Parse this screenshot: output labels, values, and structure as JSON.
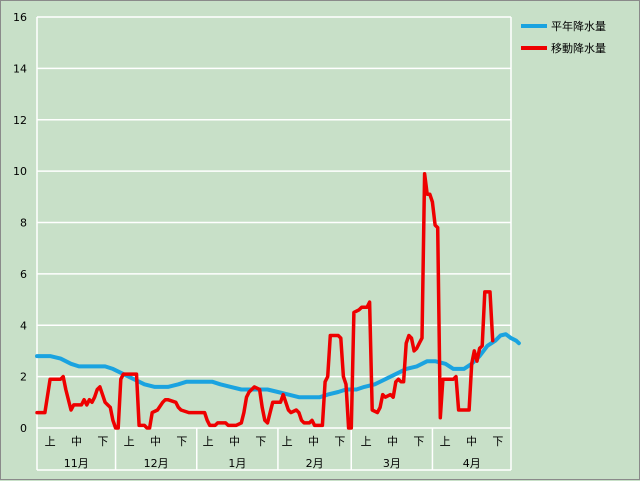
{
  "chart_data": {
    "type": "line",
    "ylim": [
      0,
      16
    ],
    "yticks": [
      0,
      2,
      4,
      6,
      8,
      10,
      12,
      14,
      16
    ],
    "grid": true,
    "legend_position": "top-right",
    "x_sublabels": [
      "上",
      "中",
      "下",
      "上",
      "中",
      "下",
      "上",
      "中",
      "下",
      "上",
      "中",
      "下",
      "上",
      "中",
      "下",
      "上",
      "中",
      "下"
    ],
    "x_months": [
      "11月",
      "12月",
      "1月",
      "2月",
      "3月",
      "4月"
    ],
    "month_days": [
      30,
      31,
      31,
      28,
      31,
      30
    ],
    "x_domain": [
      0,
      181
    ],
    "series": [
      {
        "name": "平年降水量",
        "color": "#1aa3e0",
        "points": [
          [
            0,
            2.8
          ],
          [
            5,
            2.8
          ],
          [
            9,
            2.7
          ],
          [
            13,
            2.5
          ],
          [
            16,
            2.4
          ],
          [
            20,
            2.4
          ],
          [
            26,
            2.4
          ],
          [
            29,
            2.3
          ],
          [
            33,
            2.1
          ],
          [
            37,
            1.9
          ],
          [
            41,
            1.7
          ],
          [
            45,
            1.6
          ],
          [
            50,
            1.6
          ],
          [
            54,
            1.7
          ],
          [
            57,
            1.8
          ],
          [
            61,
            1.8
          ],
          [
            67,
            1.8
          ],
          [
            70,
            1.7
          ],
          [
            74,
            1.6
          ],
          [
            78,
            1.5
          ],
          [
            83,
            1.5
          ],
          [
            88,
            1.5
          ],
          [
            92,
            1.4
          ],
          [
            96,
            1.3
          ],
          [
            100,
            1.2
          ],
          [
            104,
            1.2
          ],
          [
            108,
            1.2
          ],
          [
            111,
            1.3
          ],
          [
            115,
            1.4
          ],
          [
            118,
            1.5
          ],
          [
            122,
            1.5
          ],
          [
            125,
            1.6
          ],
          [
            129,
            1.7
          ],
          [
            133,
            1.9
          ],
          [
            137,
            2.1
          ],
          [
            141,
            2.3
          ],
          [
            145,
            2.4
          ],
          [
            149,
            2.6
          ],
          [
            152,
            2.6
          ],
          [
            156,
            2.5
          ],
          [
            159,
            2.3
          ],
          [
            163,
            2.3
          ],
          [
            166,
            2.5
          ],
          [
            169,
            2.8
          ],
          [
            172,
            3.2
          ],
          [
            175,
            3.4
          ],
          [
            177,
            3.6
          ],
          [
            179,
            3.65
          ],
          [
            181,
            3.5
          ],
          [
            183,
            3.4
          ],
          [
            184,
            3.3
          ]
        ]
      },
      {
        "name": "移動降水量",
        "color": "#ee0000",
        "points": [
          [
            0,
            0.6
          ],
          [
            3,
            0.6
          ],
          [
            5,
            1.9
          ],
          [
            9,
            1.9
          ],
          [
            10,
            2.0
          ],
          [
            11,
            1.5
          ],
          [
            13,
            0.7
          ],
          [
            14,
            0.9
          ],
          [
            17,
            0.9
          ],
          [
            18,
            1.1
          ],
          [
            19,
            0.9
          ],
          [
            20,
            1.1
          ],
          [
            21,
            1.0
          ],
          [
            22,
            1.2
          ],
          [
            23,
            1.5
          ],
          [
            24,
            1.6
          ],
          [
            25,
            1.3
          ],
          [
            26,
            1.0
          ],
          [
            27,
            0.9
          ],
          [
            28,
            0.8
          ],
          [
            29,
            0.3
          ],
          [
            30,
            0.0
          ],
          [
            31,
            0.0
          ],
          [
            32,
            1.9
          ],
          [
            33,
            2.1
          ],
          [
            38,
            2.1
          ],
          [
            39,
            0.1
          ],
          [
            41,
            0.1
          ],
          [
            42,
            0.0
          ],
          [
            43,
            0.0
          ],
          [
            44,
            0.6
          ],
          [
            46,
            0.7
          ],
          [
            48,
            1.0
          ],
          [
            49,
            1.1
          ],
          [
            50,
            1.1
          ],
          [
            53,
            1.0
          ],
          [
            54,
            0.8
          ],
          [
            55,
            0.7
          ],
          [
            58,
            0.6
          ],
          [
            59,
            0.6
          ],
          [
            60,
            0.6
          ],
          [
            62,
            0.6
          ],
          [
            64,
            0.6
          ],
          [
            65,
            0.3
          ],
          [
            66,
            0.1
          ],
          [
            68,
            0.1
          ],
          [
            69,
            0.2
          ],
          [
            72,
            0.2
          ],
          [
            73,
            0.1
          ],
          [
            75,
            0.1
          ],
          [
            76,
            0.1
          ],
          [
            78,
            0.2
          ],
          [
            79,
            0.6
          ],
          [
            80,
            1.2
          ],
          [
            81,
            1.4
          ],
          [
            82,
            1.5
          ],
          [
            83,
            1.6
          ],
          [
            85,
            1.5
          ],
          [
            86,
            0.8
          ],
          [
            87,
            0.3
          ],
          [
            88,
            0.2
          ],
          [
            89,
            0.6
          ],
          [
            90,
            1.0
          ],
          [
            92,
            1.0
          ],
          [
            93,
            1.0
          ],
          [
            94,
            1.3
          ],
          [
            95,
            1.0
          ],
          [
            96,
            0.7
          ],
          [
            97,
            0.6
          ],
          [
            99,
            0.7
          ],
          [
            100,
            0.6
          ],
          [
            101,
            0.3
          ],
          [
            102,
            0.2
          ],
          [
            104,
            0.2
          ],
          [
            105,
            0.3
          ],
          [
            106,
            0.1
          ],
          [
            107,
            0.1
          ],
          [
            109,
            0.1
          ],
          [
            110,
            1.8
          ],
          [
            111,
            2.0
          ],
          [
            112,
            3.6
          ],
          [
            115,
            3.6
          ],
          [
            116,
            3.5
          ],
          [
            117,
            2.0
          ],
          [
            118,
            1.7
          ],
          [
            119,
            0.0
          ],
          [
            120,
            0.0
          ],
          [
            121,
            4.5
          ],
          [
            123,
            4.6
          ],
          [
            124,
            4.7
          ],
          [
            126,
            4.7
          ],
          [
            127,
            4.9
          ],
          [
            128,
            0.7
          ],
          [
            130,
            0.6
          ],
          [
            131,
            0.8
          ],
          [
            132,
            1.3
          ],
          [
            133,
            1.2
          ],
          [
            135,
            1.3
          ],
          [
            136,
            1.2
          ],
          [
            137,
            1.8
          ],
          [
            138,
            1.9
          ],
          [
            139,
            1.8
          ],
          [
            140,
            1.8
          ],
          [
            141,
            3.3
          ],
          [
            142,
            3.6
          ],
          [
            143,
            3.5
          ],
          [
            144,
            3.0
          ],
          [
            145,
            3.1
          ],
          [
            146,
            3.3
          ],
          [
            147,
            3.5
          ],
          [
            148,
            9.9
          ],
          [
            149,
            9.1
          ],
          [
            150,
            9.1
          ],
          [
            151,
            8.8
          ],
          [
            152,
            7.9
          ],
          [
            153,
            7.8
          ],
          [
            154,
            0.4
          ],
          [
            155,
            1.9
          ],
          [
            158,
            1.9
          ],
          [
            159,
            1.9
          ],
          [
            160,
            2.0
          ],
          [
            161,
            0.7
          ],
          [
            162,
            0.7
          ],
          [
            165,
            0.7
          ],
          [
            166,
            2.5
          ],
          [
            167,
            3.0
          ],
          [
            168,
            2.6
          ],
          [
            169,
            3.1
          ],
          [
            170,
            3.2
          ],
          [
            171,
            5.3
          ],
          [
            173,
            5.3
          ],
          [
            174,
            3.4
          ]
        ]
      }
    ]
  }
}
